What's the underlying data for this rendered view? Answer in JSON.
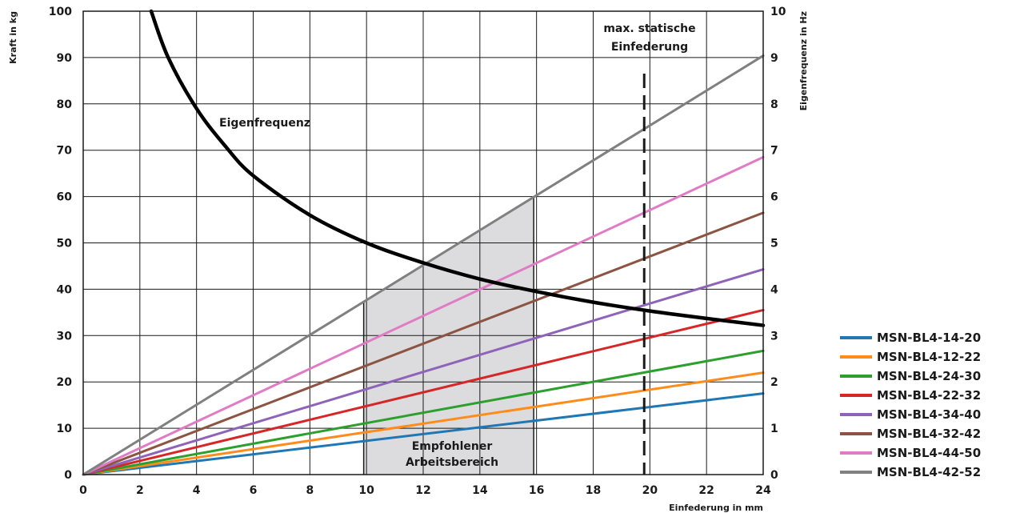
{
  "chart_data": {
    "type": "line",
    "xlabel": "Einfederung in mm",
    "ylabel": "Kraft in kg",
    "y2label": "Eigenfrequenz in Hz",
    "xlim": [
      0,
      24
    ],
    "ylim": [
      0,
      100
    ],
    "y2lim": [
      0,
      10
    ],
    "grid": true,
    "x_ticks": [
      "0",
      "2",
      "4",
      "6",
      "8",
      "10",
      "12",
      "14",
      "16",
      "18",
      "20",
      "22",
      "24"
    ],
    "y_ticks": [
      "0",
      "10",
      "20",
      "30",
      "40",
      "50",
      "60",
      "70",
      "80",
      "90",
      "100"
    ],
    "y2_ticks": [
      "0",
      "1",
      "2",
      "3",
      "4",
      "5",
      "6",
      "7",
      "8",
      "9",
      "10"
    ],
    "series": [
      {
        "name": "MSN-BL4-14-20",
        "color": "#1f77b4",
        "x": [
          0,
          24
        ],
        "y": [
          0,
          17.5
        ]
      },
      {
        "name": "MSN-BL4-12-22",
        "color": "#ff8c1a",
        "x": [
          0,
          24
        ],
        "y": [
          0,
          22
        ]
      },
      {
        "name": "MSN-BL4-24-30",
        "color": "#2ca02c",
        "x": [
          0,
          24
        ],
        "y": [
          0,
          26.7
        ]
      },
      {
        "name": "MSN-BL4-22-32",
        "color": "#d62728",
        "x": [
          0,
          24
        ],
        "y": [
          0,
          35.5
        ]
      },
      {
        "name": "MSN-BL4-34-40",
        "color": "#8e63b8",
        "x": [
          0,
          24
        ],
        "y": [
          0,
          44.3
        ]
      },
      {
        "name": "MSN-BL4-32-42",
        "color": "#8c5442",
        "x": [
          0,
          24
        ],
        "y": [
          0,
          56.5
        ]
      },
      {
        "name": "MSN-BL4-44-50",
        "color": "#e07bc5",
        "x": [
          0,
          24
        ],
        "y": [
          0,
          68.5
        ]
      },
      {
        "name": "MSN-BL4-42-52",
        "color": "#808080",
        "x": [
          0,
          24
        ],
        "y": [
          0,
          90.4
        ]
      }
    ],
    "frequency_curve": {
      "label": "Eigenfrequenz",
      "color": "#000000",
      "axis": "y2",
      "x": [
        2.4,
        3,
        4,
        5,
        6,
        8,
        10,
        12,
        14,
        16,
        18,
        20,
        22,
        24
      ],
      "y": [
        10,
        9.0,
        7.9,
        7.1,
        6.45,
        5.6,
        5.0,
        4.57,
        4.22,
        3.95,
        3.72,
        3.53,
        3.37,
        3.22
      ]
    },
    "recommended_range": {
      "label": [
        "Empfohlener",
        "Arbeitsbereich"
      ],
      "x_from": 9.9,
      "x_to": 15.9,
      "color": "#dcdcde"
    },
    "max_static_deflection": {
      "label": [
        "max. statische",
        "Einfederung"
      ],
      "x": 19.8
    }
  }
}
